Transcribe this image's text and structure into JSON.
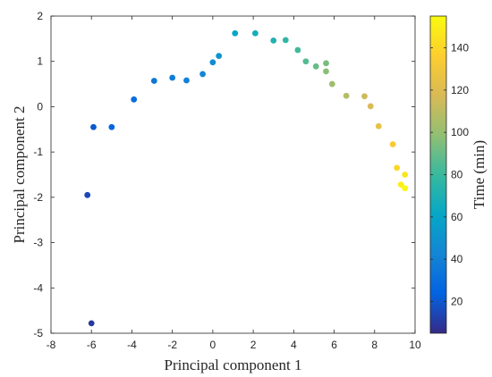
{
  "chart_data": {
    "type": "scatter",
    "xlabel": "Principal component 1",
    "ylabel": "Principal component 2",
    "xlim": [
      -8,
      10
    ],
    "ylim": [
      -5,
      2
    ],
    "xticks": [
      -8,
      -6,
      -4,
      -2,
      0,
      2,
      4,
      6,
      8,
      10
    ],
    "yticks": [
      -5,
      -4,
      -3,
      -2,
      -1,
      0,
      1,
      2
    ],
    "grid": false,
    "colormap": "parula",
    "colorbar": {
      "label": "Time (min)",
      "lim": [
        5,
        155
      ],
      "ticks": [
        20,
        40,
        60,
        80,
        100,
        120,
        140
      ]
    },
    "points": [
      {
        "x": -6.0,
        "y": -4.78,
        "t": 10
      },
      {
        "x": -6.2,
        "y": -1.95,
        "t": 15
      },
      {
        "x": -5.9,
        "y": -0.45,
        "t": 20
      },
      {
        "x": -5.0,
        "y": -0.45,
        "t": 25
      },
      {
        "x": -3.9,
        "y": 0.16,
        "t": 30
      },
      {
        "x": -2.9,
        "y": 0.57,
        "t": 35
      },
      {
        "x": -2.0,
        "y": 0.64,
        "t": 38
      },
      {
        "x": -1.3,
        "y": 0.58,
        "t": 40
      },
      {
        "x": -0.5,
        "y": 0.72,
        "t": 43
      },
      {
        "x": 0.0,
        "y": 0.98,
        "t": 46
      },
      {
        "x": 0.3,
        "y": 1.12,
        "t": 50
      },
      {
        "x": 1.1,
        "y": 1.62,
        "t": 60
      },
      {
        "x": 2.1,
        "y": 1.62,
        "t": 67
      },
      {
        "x": 3.0,
        "y": 1.46,
        "t": 72
      },
      {
        "x": 3.6,
        "y": 1.47,
        "t": 77
      },
      {
        "x": 4.2,
        "y": 1.25,
        "t": 82
      },
      {
        "x": 4.6,
        "y": 1.0,
        "t": 86
      },
      {
        "x": 5.1,
        "y": 0.89,
        "t": 90
      },
      {
        "x": 5.6,
        "y": 0.96,
        "t": 93
      },
      {
        "x": 5.6,
        "y": 0.78,
        "t": 97
      },
      {
        "x": 5.9,
        "y": 0.5,
        "t": 102
      },
      {
        "x": 6.6,
        "y": 0.24,
        "t": 108
      },
      {
        "x": 7.5,
        "y": 0.23,
        "t": 114
      },
      {
        "x": 7.8,
        "y": 0.01,
        "t": 118
      },
      {
        "x": 8.2,
        "y": -0.43,
        "t": 125
      },
      {
        "x": 8.9,
        "y": -0.83,
        "t": 133
      },
      {
        "x": 9.1,
        "y": -1.35,
        "t": 140
      },
      {
        "x": 9.5,
        "y": -1.5,
        "t": 146
      },
      {
        "x": 9.3,
        "y": -1.72,
        "t": 150
      },
      {
        "x": 9.5,
        "y": -1.8,
        "t": 154
      }
    ]
  }
}
